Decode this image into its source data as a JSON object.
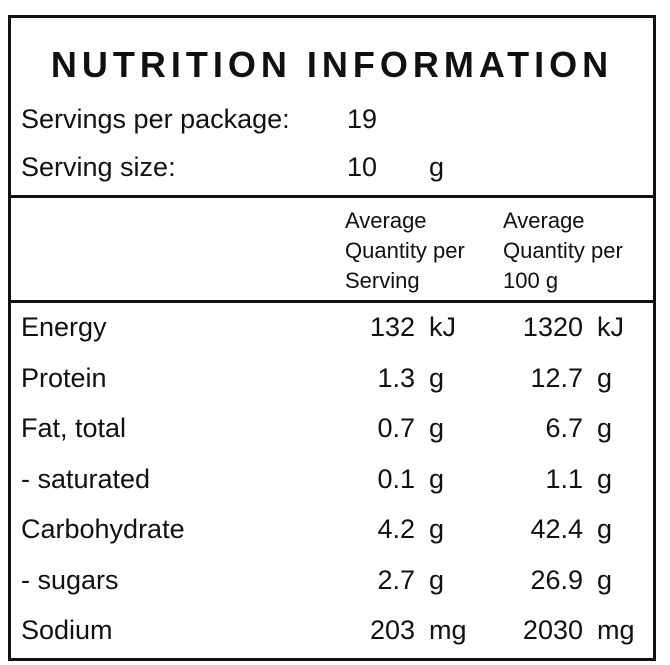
{
  "title": "NUTRITION INFORMATION",
  "servings": {
    "label": "Servings per package:",
    "value": 19
  },
  "serving_size": {
    "label": "Serving size:",
    "value": 10,
    "unit": "g"
  },
  "table": {
    "headers": [
      "Average Quantity per Serving",
      "Average Quantity per 100 g"
    ],
    "rows": [
      [
        "Energy",
        132,
        "kJ",
        1320,
        "kJ"
      ],
      [
        "Protein",
        1.3,
        "g",
        12.7,
        "g"
      ],
      [
        "Fat, total",
        0.7,
        "g",
        6.7,
        "g"
      ],
      [
        "- saturated",
        0.1,
        "g",
        1.1,
        "g"
      ],
      [
        "Carbohydrate",
        4.2,
        "g",
        42.4,
        "g"
      ],
      [
        "- sugars",
        2.7,
        "g",
        26.9,
        "g"
      ],
      [
        "Sodium",
        203,
        "mg",
        2030,
        "mg"
      ]
    ]
  }
}
